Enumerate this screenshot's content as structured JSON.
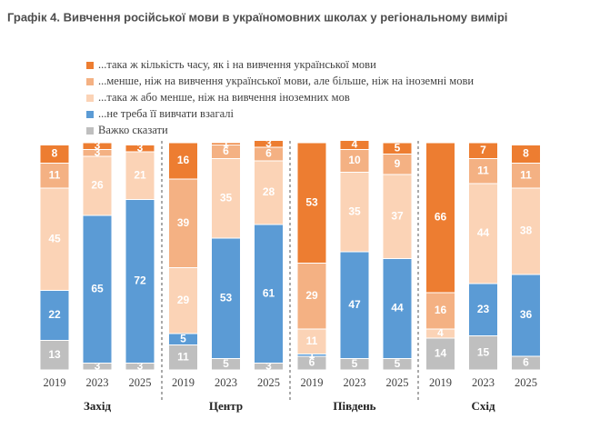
{
  "chart_data": {
    "type": "stacked-bar",
    "title": "Графік 4. Вивчення російської мови в україномовних школах у регіональному вимірі",
    "categories": [
      "2019",
      "2023",
      "2025",
      "2019",
      "2023",
      "2025",
      "2019",
      "2023",
      "2025",
      "2019",
      "2023",
      "2025"
    ],
    "groups": [
      "Захід",
      "Центр",
      "Південь",
      "Схід"
    ],
    "ylim": [
      0,
      100
    ],
    "series": [
      {
        "name": "Важко сказати",
        "color": "#bfbfbf",
        "values": [
          13,
          3,
          3,
          11,
          5,
          3,
          6,
          5,
          5,
          14,
          15,
          6
        ]
      },
      {
        "name": "...не треба її вивчати взагалі",
        "color": "#5b9bd5",
        "values": [
          22,
          65,
          72,
          5,
          53,
          61,
          1,
          47,
          44,
          null,
          23,
          36
        ]
      },
      {
        "name": "...така ж або менше, ніж на вивчення іноземних мов",
        "color": "#fbd3b6",
        "values": [
          45,
          26,
          21,
          29,
          35,
          28,
          11,
          35,
          37,
          4,
          44,
          38
        ]
      },
      {
        "name": "...менше, ніж на вивчення української мови, але більше, ніж на іноземні мови",
        "color": "#f4b183",
        "values": [
          11,
          3,
          null,
          39,
          6,
          6,
          29,
          10,
          9,
          16,
          11,
          11
        ]
      },
      {
        "name": "...така ж кількість часу, як і на вивчення української мови",
        "color": "#ed7d31",
        "values": [
          8,
          3,
          3,
          16,
          1,
          3,
          53,
          4,
          5,
          66,
          7,
          8
        ]
      }
    ]
  }
}
